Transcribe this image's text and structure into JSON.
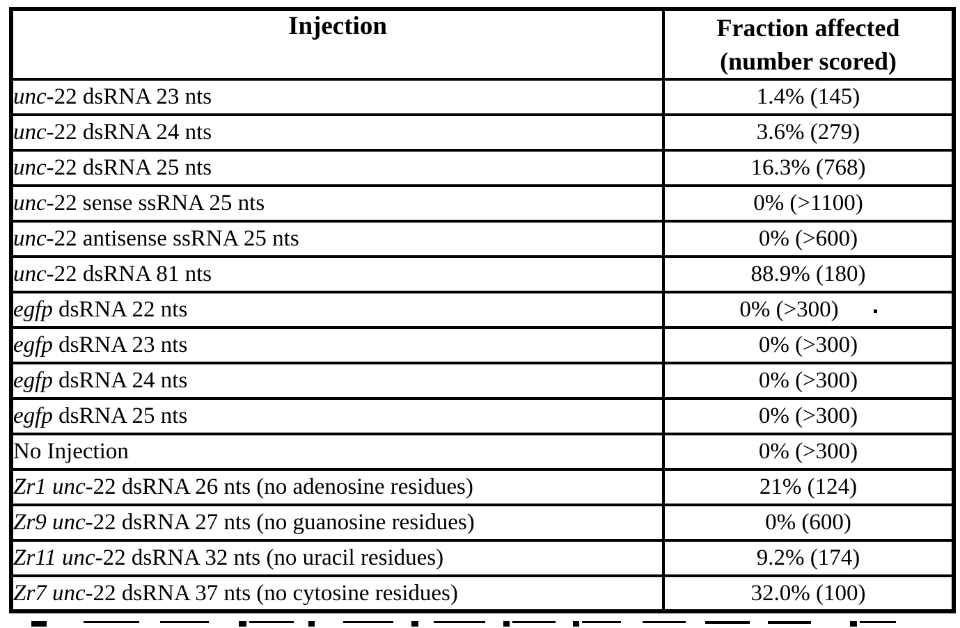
{
  "colors": {
    "ink": "#000000",
    "paper": "#ffffff"
  },
  "table": {
    "header": {
      "injection_label": "Injection",
      "fraction_label_line1": "Fraction affected",
      "fraction_label_line2": "(number scored)"
    },
    "rows": [
      {
        "injection": [
          {
            "text": "unc",
            "italic": true
          },
          {
            "text": "-22 dsRNA 23 nts",
            "italic": false
          }
        ],
        "fraction": "1.4% (145)"
      },
      {
        "injection": [
          {
            "text": "unc",
            "italic": true
          },
          {
            "text": "-22 dsRNA 24 nts",
            "italic": false
          }
        ],
        "fraction": "3.6% (279)"
      },
      {
        "injection": [
          {
            "text": "unc",
            "italic": true
          },
          {
            "text": "-22 dsRNA 25 nts",
            "italic": false
          }
        ],
        "fraction": "16.3% (768)"
      },
      {
        "injection": [
          {
            "text": "unc",
            "italic": true
          },
          {
            "text": "-22 sense ssRNA 25 nts",
            "italic": false
          }
        ],
        "fraction": "0% (>1100)"
      },
      {
        "injection": [
          {
            "text": "unc",
            "italic": true
          },
          {
            "text": "-22 antisense ssRNA 25 nts",
            "italic": false
          }
        ],
        "fraction": "0% (>600)"
      },
      {
        "injection": [
          {
            "text": "unc",
            "italic": true
          },
          {
            "text": "-22 dsRNA 81 nts",
            "italic": false
          }
        ],
        "fraction": "88.9% (180)"
      },
      {
        "injection": [
          {
            "text": "egfp",
            "italic": true
          },
          {
            "text": " dsRNA 22 nts",
            "italic": false
          }
        ],
        "fraction": "0% (>300)",
        "stray_dot": true
      },
      {
        "injection": [
          {
            "text": "egfp",
            "italic": true
          },
          {
            "text": " dsRNA 23 nts",
            "italic": false
          }
        ],
        "fraction": "0% (>300)"
      },
      {
        "injection": [
          {
            "text": "egfp",
            "italic": true
          },
          {
            "text": " dsRNA 24 nts",
            "italic": false
          }
        ],
        "fraction": "0% (>300)"
      },
      {
        "injection": [
          {
            "text": "egfp",
            "italic": true
          },
          {
            "text": " dsRNA 25 nts",
            "italic": false
          }
        ],
        "fraction": "0% (>300)"
      },
      {
        "injection": [
          {
            "text": "No Injection",
            "italic": false
          }
        ],
        "fraction": "0% (>300)"
      },
      {
        "injection": [
          {
            "text": "Zr1 unc",
            "italic": true
          },
          {
            "text": "-22 dsRNA 26 nts (no adenosine residues)",
            "italic": false
          }
        ],
        "fraction": "21% (124)"
      },
      {
        "injection": [
          {
            "text": "Zr9 unc",
            "italic": true
          },
          {
            "text": "-22 dsRNA 27 nts (no guanosine residues)",
            "italic": false
          }
        ],
        "fraction": "0% (600)"
      },
      {
        "injection": [
          {
            "text": "Zr11 unc",
            "italic": true
          },
          {
            "text": "-22 dsRNA 32 nts (no uracil residues)",
            "italic": false
          }
        ],
        "fraction": "9.2% (174)"
      },
      {
        "injection": [
          {
            "text": "Zr7 unc",
            "italic": true
          },
          {
            "text": "-22 dsRNA 37 nts (no cytosine residues)",
            "italic": false
          }
        ],
        "fraction": "32.0% (100)"
      }
    ]
  }
}
